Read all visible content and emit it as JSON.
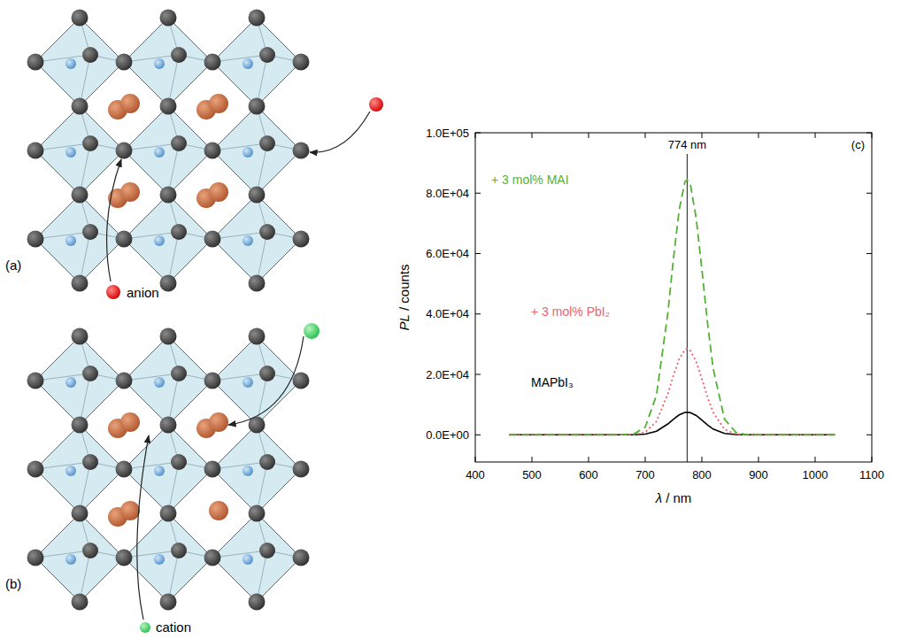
{
  "diagrams": [
    {
      "label": "(a)",
      "annotation": "anion"
    },
    {
      "label": "(b)",
      "annotation": "cation"
    }
  ],
  "chart_data": {
    "type": "line",
    "label": "(c)",
    "x_label": "λ / nm",
    "y_label": "PL / counts",
    "annotations": [
      {
        "x": 774,
        "label": "774 nm"
      }
    ],
    "xlim": [
      400,
      1100
    ],
    "xticks": [
      400,
      500,
      600,
      700,
      800,
      900,
      1000,
      1100
    ],
    "ylim": [
      -9000,
      100000
    ],
    "yticks": [
      {
        "value": 0,
        "label": "0.0E+00"
      },
      {
        "value": 20000,
        "label": "2.0E+04"
      },
      {
        "value": 40000,
        "label": "4.0E+04"
      },
      {
        "value": 60000,
        "label": "6.0E+04"
      },
      {
        "value": 80000,
        "label": "8.0E+04"
      },
      {
        "value": 100000,
        "label": "1.0E+05"
      }
    ],
    "x": [
      460,
      500,
      550,
      600,
      650,
      680,
      700,
      720,
      740,
      750,
      760,
      770,
      774,
      780,
      790,
      800,
      810,
      820,
      840,
      860,
      880,
      900,
      950,
      1000,
      1035
    ],
    "series": [
      {
        "name": "+ 3 mol% MAI",
        "color": "#55b035",
        "line_style": "dashed",
        "values": [
          0,
          0,
          0,
          0,
          0,
          300,
          2500,
          13200,
          40400,
          58600,
          74500,
          83700,
          84500,
          82600,
          71700,
          54900,
          37000,
          21900,
          5200,
          800,
          0,
          0,
          0,
          0,
          0
        ]
      },
      {
        "name": "+ 3 mol% PbI₂",
        "color": "#f0606a",
        "line_style": "dotted",
        "values": [
          0,
          0,
          0,
          0,
          0,
          100,
          860,
          4450,
          13600,
          19750,
          25100,
          28200,
          28500,
          27800,
          24200,
          18500,
          12500,
          7400,
          1800,
          260,
          0,
          0,
          0,
          0,
          0
        ]
      },
      {
        "name": "MAPbI₃",
        "color": "#000000",
        "line_style": "solid",
        "values": [
          0,
          0,
          0,
          0,
          0,
          30,
          230,
          1170,
          3600,
          5200,
          6600,
          7400,
          7500,
          7300,
          6400,
          4900,
          3300,
          1900,
          470,
          70,
          0,
          0,
          0,
          0,
          0
        ]
      }
    ]
  }
}
